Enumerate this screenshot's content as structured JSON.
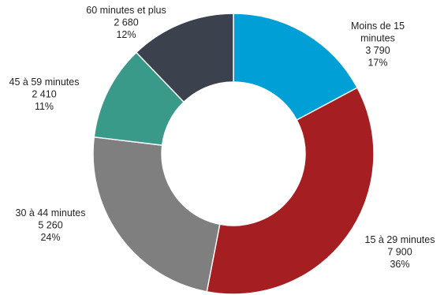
{
  "chart_data": {
    "type": "pie",
    "variant": "donut",
    "series": [
      {
        "key": "moins-15",
        "label_lines": [
          "Moins de 15",
          "minutes"
        ],
        "value": 3790,
        "value_text": "3 790",
        "percent_text": "17%",
        "color": "#00A0D6"
      },
      {
        "key": "15-29",
        "label_lines": [
          "15 à 29 minutes"
        ],
        "value": 7900,
        "value_text": "7 900",
        "percent_text": "36%",
        "color": "#A51E22"
      },
      {
        "key": "30-44",
        "label_lines": [
          "30 à 44 minutes"
        ],
        "value": 5260,
        "value_text": "5 260",
        "percent_text": "24%",
        "color": "#7F7F7F"
      },
      {
        "key": "45-59",
        "label_lines": [
          "45 à 59 minutes"
        ],
        "value": 2410,
        "value_text": "2 410",
        "percent_text": "11%",
        "color": "#3A9A8A"
      },
      {
        "key": "60-plus",
        "label_lines": [
          "60 minutes et plus"
        ],
        "value": 2680,
        "value_text": "2 680",
        "percent_text": "12%",
        "color": "#3B414D"
      }
    ],
    "start": "12 o'clock",
    "direction": "clockwise",
    "legend": "none"
  }
}
